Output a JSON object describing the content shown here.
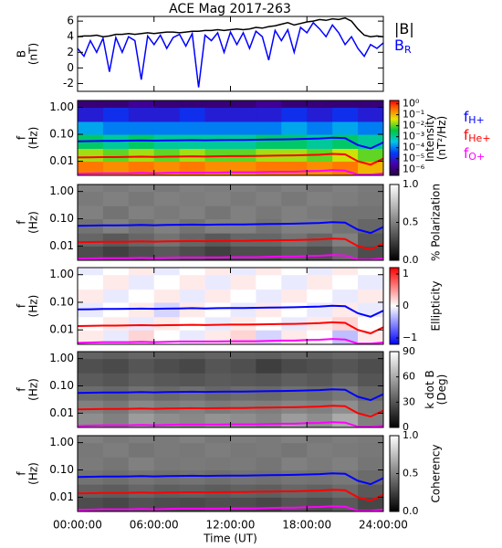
{
  "chart_data": [
    {
      "type": "line",
      "title": "ACE Mag 2017-263",
      "ylabel": [
        "B",
        "(nT)"
      ],
      "xlim": [
        0,
        24
      ],
      "ylim": [
        -3,
        6.6
      ],
      "yticks": [
        -2,
        0,
        2,
        4,
        6
      ],
      "x": [
        0,
        0.5,
        1,
        1.5,
        2,
        2.5,
        3,
        3.5,
        4,
        4.5,
        5,
        5.5,
        6,
        6.5,
        7,
        7.5,
        8,
        8.5,
        9,
        9.5,
        10,
        10.5,
        11,
        11.5,
        12,
        12.5,
        13,
        13.5,
        14,
        14.5,
        15,
        15.5,
        16,
        16.5,
        17,
        17.5,
        18,
        18.5,
        19,
        19.5,
        20,
        20.5,
        21,
        21.5,
        22,
        22.5,
        23,
        23.5,
        24
      ],
      "series": [
        {
          "name": "|B|",
          "color": "#000000",
          "values": [
            4.0,
            4.1,
            4.1,
            4.2,
            4.0,
            4.1,
            4.3,
            4.3,
            4.4,
            4.3,
            4.4,
            4.5,
            4.4,
            4.5,
            4.6,
            4.6,
            4.5,
            4.6,
            4.7,
            4.7,
            4.8,
            4.8,
            4.9,
            4.8,
            4.9,
            5.0,
            4.9,
            5.0,
            5.2,
            5.1,
            5.3,
            5.4,
            5.6,
            5.8,
            5.5,
            5.7,
            5.9,
            6.0,
            6.2,
            6.1,
            6.3,
            6.2,
            6.4,
            6.0,
            5.0,
            4.2,
            4.0,
            4.1,
            4.0
          ]
        },
        {
          "name": "B",
          "name_sub": "R",
          "color": "#0000ff",
          "values": [
            2.5,
            1.5,
            3.5,
            2.0,
            3.8,
            -0.5,
            3.9,
            2.0,
            4.0,
            3.5,
            -1.5,
            4.1,
            3.0,
            4.2,
            2.5,
            3.9,
            4.3,
            2.8,
            4.4,
            -2.5,
            4.2,
            3.5,
            4.5,
            2.0,
            4.6,
            3.0,
            4.5,
            2.5,
            4.7,
            4.0,
            1.0,
            4.8,
            3.5,
            4.9,
            2.0,
            5.2,
            4.5,
            5.8,
            5.0,
            4.0,
            5.5,
            4.5,
            3.0,
            4.0,
            2.5,
            1.5,
            3.0,
            2.5,
            3.2
          ]
        }
      ]
    },
    {
      "type": "heatmap",
      "ylabel": [
        "f",
        "(Hz)"
      ],
      "log": true,
      "xlim": [
        0,
        24
      ],
      "ylim": [
        0.003,
        1.8
      ],
      "yticks": [
        {
          "value": 1,
          "label": "1.00"
        },
        {
          "value": 0.1,
          "label": "0.10"
        },
        {
          "value": 0.01,
          "label": "0.01"
        }
      ],
      "x_bins": [
        0,
        2,
        4,
        6,
        8,
        10,
        12,
        14,
        16,
        18,
        20,
        22,
        24
      ],
      "y_bins": [
        0.003,
        0.01,
        0.03,
        0.1,
        0.3,
        1,
        1.8
      ],
      "z": [
        [
          0.3,
          0.2,
          0.3,
          0.2,
          0.3,
          0.2,
          0.2,
          0.3,
          0.3,
          0.2,
          0.3,
          0.1
        ],
        [
          0.02,
          0.01,
          0.02,
          0.01,
          0.02,
          0.01,
          0.01,
          0.02,
          0.02,
          0.01,
          0.03,
          0.01
        ],
        [
          0.002,
          0.001,
          0.002,
          0.001,
          0.001,
          0.001,
          0.001,
          0.002,
          0.002,
          0.001,
          0.002,
          0.001
        ],
        [
          0.0002,
          0.0001,
          0.0001,
          0.0001,
          0.0001,
          0.0001,
          0.0001,
          0.0001,
          0.0002,
          0.0001,
          0.0002,
          0.0001
        ],
        [
          1e-05,
          2e-05,
          1e-05,
          1e-05,
          2e-05,
          1e-05,
          1e-05,
          1e-05,
          2e-05,
          1e-05,
          2e-05,
          1e-05
        ],
        [
          1e-06,
          1e-06,
          2e-06,
          1e-06,
          1e-06,
          1e-06,
          1e-06,
          2e-06,
          1e-06,
          1e-06,
          1e-06,
          1e-06
        ]
      ],
      "colormap": "rainbow",
      "colorbar_log": true,
      "clim": [
        3e-07,
        2
      ],
      "colorbar_ticks": [
        {
          "value": 1,
          "label": "10⁰"
        },
        {
          "value": 0.1,
          "label": "10⁻¹"
        },
        {
          "value": 0.01,
          "label": "10⁻²"
        },
        {
          "value": 0.001,
          "label": "10⁻³"
        },
        {
          "value": 0.0001,
          "label": "10⁻⁴"
        },
        {
          "value": 1e-05,
          "label": "10⁻⁵"
        },
        {
          "value": 1e-06,
          "label": "10⁻⁶"
        }
      ],
      "colorbar_label": [
        "Intensity",
        "(nT²/Hz)"
      ],
      "x": [
        0,
        1,
        2,
        3,
        4,
        5,
        6,
        7,
        8,
        9,
        10,
        11,
        12,
        13,
        14,
        15,
        16,
        17,
        18,
        19,
        20,
        21,
        22,
        23,
        24
      ],
      "series": [
        {
          "name": "f",
          "name_sub": "H+",
          "color": "#0000ff",
          "values": [
            0.055,
            0.056,
            0.057,
            0.057,
            0.058,
            0.059,
            0.058,
            0.059,
            0.06,
            0.061,
            0.06,
            0.061,
            0.062,
            0.062,
            0.063,
            0.064,
            0.065,
            0.066,
            0.068,
            0.07,
            0.075,
            0.072,
            0.04,
            0.03,
            0.05
          ]
        },
        {
          "name": "f",
          "name_sub": "He+",
          "color": "#ff0000",
          "values": [
            0.0138,
            0.014,
            0.0143,
            0.0143,
            0.0145,
            0.0148,
            0.0145,
            0.0148,
            0.015,
            0.0153,
            0.015,
            0.0153,
            0.0155,
            0.0155,
            0.0158,
            0.016,
            0.0163,
            0.0165,
            0.017,
            0.0175,
            0.0188,
            0.018,
            0.01,
            0.0075,
            0.0125
          ]
        },
        {
          "name": "f",
          "name_sub": "O+",
          "color": "#ff00ff",
          "values": [
            0.0034,
            0.0035,
            0.0036,
            0.0036,
            0.0036,
            0.0037,
            0.0036,
            0.0037,
            0.0038,
            0.0038,
            0.0038,
            0.0038,
            0.0039,
            0.0039,
            0.0039,
            0.004,
            0.0041,
            0.0041,
            0.0043,
            0.0044,
            0.0047,
            0.0045,
            0.0032,
            0.0032,
            0.0035
          ]
        }
      ]
    },
    {
      "type": "heatmap",
      "ylabel": [
        "f",
        "(Hz)"
      ],
      "log": true,
      "xlim": [
        0,
        24
      ],
      "ylim": [
        0.003,
        1.8
      ],
      "yticks": [
        {
          "value": 1,
          "label": "1.00"
        },
        {
          "value": 0.1,
          "label": "0.10"
        },
        {
          "value": 0.01,
          "label": "0.01"
        }
      ],
      "x_bins": [
        0,
        2,
        4,
        6,
        8,
        10,
        12,
        14,
        16,
        18,
        20,
        22,
        24
      ],
      "y_bins": [
        0.003,
        0.01,
        0.03,
        0.1,
        0.3,
        1,
        1.8
      ],
      "z": [
        [
          0.3,
          0.25,
          0.3,
          0.35,
          0.3,
          0.25,
          0.3,
          0.3,
          0.35,
          0.3,
          0.4,
          0.3
        ],
        [
          0.4,
          0.35,
          0.4,
          0.45,
          0.4,
          0.35,
          0.4,
          0.4,
          0.45,
          0.4,
          0.5,
          0.35
        ],
        [
          0.45,
          0.5,
          0.45,
          0.5,
          0.45,
          0.5,
          0.5,
          0.45,
          0.5,
          0.5,
          0.45,
          0.4
        ],
        [
          0.5,
          0.45,
          0.5,
          0.48,
          0.5,
          0.46,
          0.5,
          0.47,
          0.5,
          0.48,
          0.45,
          0.45
        ],
        [
          0.48,
          0.5,
          0.47,
          0.5,
          0.49,
          0.5,
          0.48,
          0.5,
          0.47,
          0.5,
          0.49,
          0.47
        ],
        [
          0.5,
          0.48,
          0.5,
          0.47,
          0.5,
          0.49,
          0.5,
          0.48,
          0.5,
          0.47,
          0.5,
          0.48
        ]
      ],
      "colormap": "gray",
      "clim": [
        0,
        1
      ],
      "colorbar_ticks": [
        {
          "value": 0,
          "label": "0.0"
        },
        {
          "value": 0.5,
          "label": "0.5"
        },
        {
          "value": 1,
          "label": "1.0"
        }
      ],
      "colorbar_label": [
        "% Polarization"
      ]
    },
    {
      "type": "heatmap",
      "ylabel": [
        "f",
        "(Hz)"
      ],
      "log": true,
      "xlim": [
        0,
        24
      ],
      "ylim": [
        0.003,
        1.8
      ],
      "yticks": [
        {
          "value": 1,
          "label": "1.00"
        },
        {
          "value": 0.1,
          "label": "0.10"
        },
        {
          "value": 0.01,
          "label": "0.01"
        }
      ],
      "x_bins": [
        0,
        2,
        4,
        6,
        8,
        10,
        12,
        14,
        16,
        18,
        20,
        22,
        24
      ],
      "y_bins": [
        0.003,
        0.01,
        0.03,
        0.1,
        0.3,
        1,
        1.8
      ],
      "z": [
        [
          0.1,
          -0.1,
          0.2,
          0.0,
          -0.1,
          0.1,
          0.2,
          -0.2,
          0.1,
          0.0,
          -0.3,
          0.1
        ],
        [
          0.0,
          0.1,
          -0.1,
          0.1,
          0.0,
          -0.1,
          0.1,
          0.0,
          -0.1,
          0.1,
          0.2,
          0.0
        ],
        [
          -0.1,
          0.0,
          0.1,
          -0.2,
          0.1,
          0.0,
          -0.1,
          0.1,
          0.0,
          -0.1,
          0.1,
          -0.1
        ],
        [
          0.1,
          -0.1,
          0.0,
          0.1,
          -0.1,
          0.1,
          0.0,
          -0.1,
          0.1,
          0.0,
          -0.1,
          0.1
        ],
        [
          0.0,
          0.1,
          -0.1,
          0.0,
          0.1,
          -0.1,
          0.1,
          0.0,
          -0.1,
          0.1,
          0.0,
          -0.1
        ],
        [
          -0.1,
          0.0,
          0.1,
          -0.1,
          0.0,
          0.1,
          -0.1,
          0.1,
          0.0,
          -0.1,
          0.1,
          0.0
        ]
      ],
      "colormap": "bwr",
      "clim": [
        -1.2,
        1.2
      ],
      "colorbar_ticks": [
        {
          "value": 1,
          "label": "1"
        },
        {
          "value": 0,
          "label": "0"
        },
        {
          "value": -1,
          "label": "−1"
        }
      ],
      "colorbar_label": [
        "Ellipticity"
      ]
    },
    {
      "type": "heatmap",
      "ylabel": [
        "f",
        "(Hz)"
      ],
      "log": true,
      "xlim": [
        0,
        24
      ],
      "ylim": [
        0.003,
        1.8
      ],
      "yticks": [
        {
          "value": 1,
          "label": "1.00"
        },
        {
          "value": 0.1,
          "label": "0.10"
        },
        {
          "value": 0.01,
          "label": "0.01"
        }
      ],
      "x_bins": [
        0,
        2,
        4,
        6,
        8,
        10,
        12,
        14,
        16,
        18,
        20,
        22,
        24
      ],
      "y_bins": [
        0.003,
        0.01,
        0.03,
        0.1,
        0.3,
        1,
        1.8
      ],
      "z": [
        [
          50,
          45,
          55,
          50,
          48,
          52,
          50,
          47,
          55,
          50,
          60,
          45
        ],
        [
          45,
          42,
          48,
          44,
          46,
          43,
          45,
          44,
          47,
          45,
          50,
          42
        ],
        [
          38,
          36,
          40,
          37,
          39,
          36,
          38,
          37,
          40,
          38,
          42,
          36
        ],
        [
          32,
          30,
          33,
          31,
          30,
          32,
          31,
          30,
          33,
          31,
          35,
          30
        ],
        [
          28,
          26,
          30,
          27,
          25,
          30,
          28,
          22,
          26,
          28,
          30,
          27
        ],
        [
          35,
          33,
          36,
          34,
          33,
          35,
          34,
          33,
          36,
          34,
          36,
          33
        ]
      ],
      "colormap": "gray",
      "clim": [
        0,
        90
      ],
      "colorbar_ticks": [
        0,
        30,
        60,
        90
      ],
      "colorbar_label": [
        "k dot B",
        "(Deg)"
      ]
    },
    {
      "type": "heatmap",
      "ylabel": [
        "f",
        "(Hz)"
      ],
      "log": true,
      "xlim": [
        0,
        24
      ],
      "ylim": [
        0.003,
        1.8
      ],
      "yticks": [
        {
          "value": 1,
          "label": "1.00"
        },
        {
          "value": 0.1,
          "label": "0.10"
        },
        {
          "value": 0.01,
          "label": "0.01"
        }
      ],
      "x_bins": [
        0,
        2,
        4,
        6,
        8,
        10,
        12,
        14,
        16,
        18,
        20,
        22,
        24
      ],
      "y_bins": [
        0.003,
        0.01,
        0.03,
        0.1,
        0.3,
        1,
        1.8
      ],
      "z": [
        [
          0.3,
          0.28,
          0.32,
          0.3,
          0.29,
          0.31,
          0.3,
          0.28,
          0.33,
          0.3,
          0.35,
          0.28
        ],
        [
          0.38,
          0.36,
          0.4,
          0.37,
          0.38,
          0.36,
          0.38,
          0.37,
          0.4,
          0.38,
          0.42,
          0.35
        ],
        [
          0.45,
          0.43,
          0.46,
          0.44,
          0.45,
          0.43,
          0.45,
          0.44,
          0.46,
          0.45,
          0.47,
          0.42
        ],
        [
          0.48,
          0.46,
          0.5,
          0.47,
          0.48,
          0.47,
          0.48,
          0.46,
          0.5,
          0.48,
          0.5,
          0.46
        ],
        [
          0.47,
          0.49,
          0.46,
          0.48,
          0.47,
          0.49,
          0.47,
          0.48,
          0.46,
          0.49,
          0.48,
          0.47
        ],
        [
          0.5,
          0.47,
          0.49,
          0.48,
          0.5,
          0.47,
          0.49,
          0.48,
          0.5,
          0.47,
          0.49,
          0.48
        ]
      ],
      "colormap": "gray",
      "clim": [
        0,
        1
      ],
      "colorbar_ticks": [
        {
          "value": 0,
          "label": "0.0"
        },
        {
          "value": 0.5,
          "label": "0.5"
        },
        {
          "value": 1,
          "label": "1.0"
        }
      ],
      "colorbar_label": [
        "Coherency"
      ],
      "xticks": [
        {
          "value": 0,
          "label": "00:00:00"
        },
        {
          "value": 6,
          "label": "06:00:00"
        },
        {
          "value": 12,
          "label": "12:00:00"
        },
        {
          "value": 18,
          "label": "18:00:00"
        },
        {
          "value": 24,
          "label": "24:00:00"
        }
      ],
      "xlabel": "Time (UT)"
    }
  ]
}
